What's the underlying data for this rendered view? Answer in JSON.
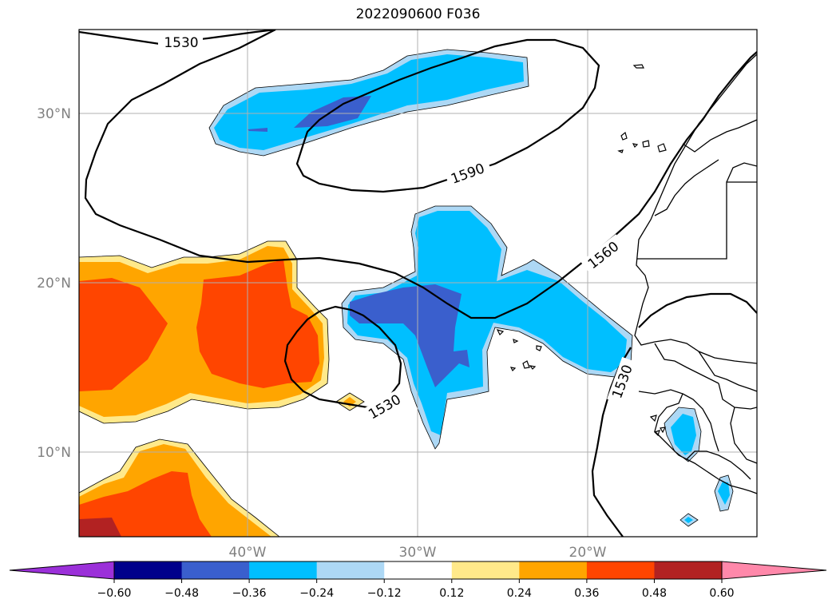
{
  "title": "2022090600 F036",
  "map": {
    "lat_labels": [
      "30°N",
      "20°N",
      "10°N"
    ],
    "lon_labels": [
      "40°W",
      "30°W",
      "20°W"
    ],
    "contour_labels": [
      "1530",
      "1590",
      "1560",
      "1530",
      "1530"
    ],
    "fill_colors": {
      "neg_036": "#00bfff",
      "neg_048": "#3a5fcd",
      "neg_012": "#add8f5",
      "pos_024": "#ffa500",
      "pos_036": "#ff4500",
      "pos_012": "#ffe98a",
      "pos_048": "#b22222"
    }
  },
  "colorbar": {
    "colors": [
      "#9b30d9",
      "#00008b",
      "#3a5fcd",
      "#00bfff",
      "#add8f5",
      "#ffffff",
      "#ffe98a",
      "#ffa500",
      "#ff4500",
      "#b22222",
      "#ff88aa"
    ],
    "tick_labels": [
      "−0.60",
      "−0.48",
      "−0.36",
      "−0.24",
      "−0.12",
      "0.12",
      "0.24",
      "0.36",
      "0.48",
      "0.60"
    ]
  }
}
